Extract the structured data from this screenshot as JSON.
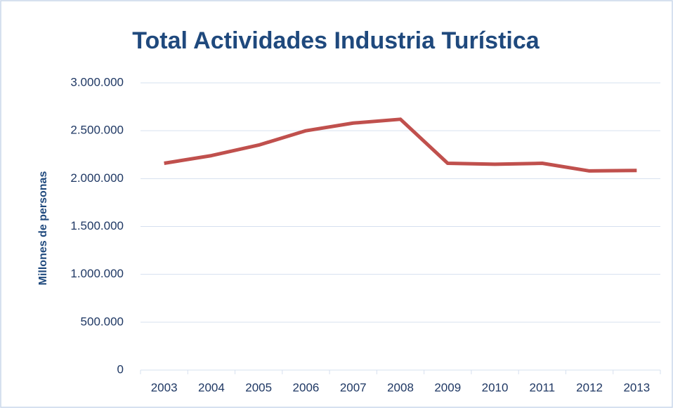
{
  "chart_data": {
    "type": "line",
    "title": "Total Actividades Industria Turística",
    "y_label": "Millones de personas",
    "categories": [
      "2003",
      "2004",
      "2005",
      "2006",
      "2007",
      "2008",
      "2009",
      "2010",
      "2011",
      "2012",
      "2013"
    ],
    "series": [
      {
        "color": "#c0504d",
        "values": [
          2160000,
          2240000,
          2350000,
          2500000,
          2580000,
          2620000,
          2160000,
          2150000,
          2160000,
          2080000,
          2085000
        ]
      }
    ],
    "ylim": [
      0,
      3000000
    ],
    "yticks": [
      0,
      {
        "value": 500000,
        "label": "500.000"
      },
      {
        "value": 1000000,
        "label": "1.000.000"
      },
      {
        "value": 1500000,
        "label": "1.500.000"
      },
      {
        "value": 2000000,
        "label": "2.000.000"
      },
      {
        "value": 2500000,
        "label": "2.500.000"
      },
      {
        "value": 3000000,
        "label": "3.000.000"
      }
    ],
    "grid": true
  }
}
